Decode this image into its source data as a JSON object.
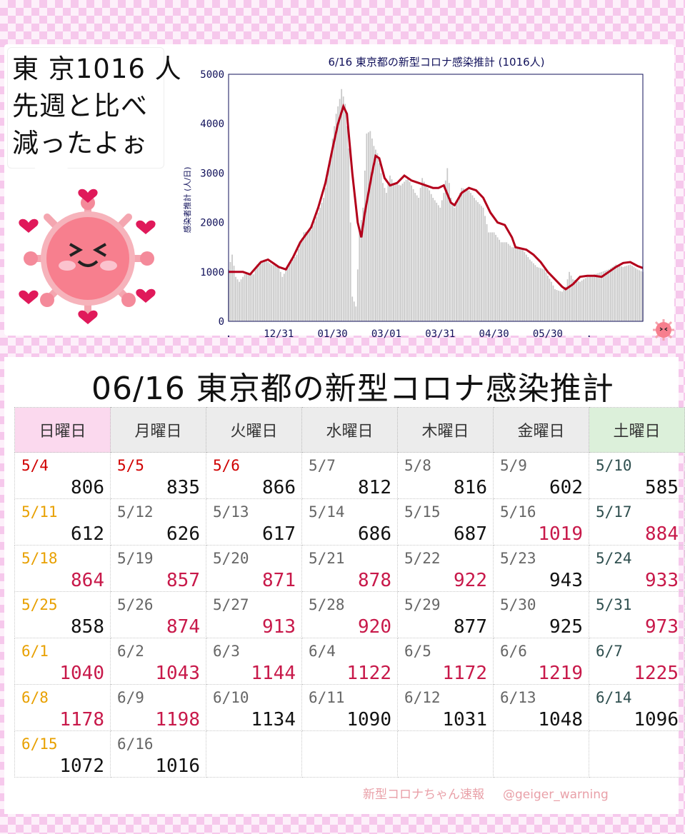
{
  "colors": {
    "holiday": "#d00000",
    "sunday": "#e8a000",
    "normal": "#666666",
    "saturday": "#2f4f4f",
    "value_normal": "#111111",
    "value_up": "#c8194a",
    "trend": "#b3001b",
    "bars": "#c8c8c8",
    "axis_text": "#10105a"
  },
  "bubble": {
    "lines": [
      "東 京1016 人",
      "先週と比べ",
      "減ったよぉ"
    ]
  },
  "mascot": {
    "name": "virus-mascot-icon",
    "small": "virus-mascot-small-icon"
  },
  "chart_data": {
    "type": "bar",
    "title": "6/16 東京都の新型コロナ感染推計 (1016人)",
    "ylabel": "感染者推計 (人/日)",
    "ylim": [
      0,
      5000
    ],
    "yticks": [
      "0",
      "1000",
      "2000",
      "3000",
      "4000",
      "5000"
    ],
    "xtick_labels": [
      ".",
      "12/31",
      "01/30",
      "03/01",
      "03/31",
      "04/30",
      "05/30",
      "."
    ],
    "x_days_from_start": [
      0,
      28,
      58,
      88,
      118,
      148,
      178,
      201
    ],
    "series": [
      {
        "values": [
          [
            0,
            1000
          ],
          [
            8,
            1000
          ],
          [
            12,
            950
          ],
          [
            18,
            1200
          ],
          [
            22,
            1250
          ],
          [
            28,
            1100
          ],
          [
            32,
            1050
          ],
          [
            36,
            1300
          ],
          [
            40,
            1600
          ],
          [
            46,
            1900
          ],
          [
            50,
            2300
          ],
          [
            54,
            2800
          ],
          [
            58,
            3500
          ],
          [
            61,
            4000
          ],
          [
            64,
            4350
          ],
          [
            66,
            4200
          ],
          [
            69,
            3000
          ],
          [
            72,
            2000
          ],
          [
            74,
            1700
          ],
          [
            76,
            2200
          ],
          [
            80,
            3000
          ],
          [
            82,
            3350
          ],
          [
            84,
            3300
          ],
          [
            87,
            2900
          ],
          [
            90,
            2750
          ],
          [
            94,
            2800
          ],
          [
            98,
            2950
          ],
          [
            102,
            2850
          ],
          [
            106,
            2800
          ],
          [
            110,
            2750
          ],
          [
            114,
            2700
          ],
          [
            117,
            2700
          ],
          [
            120,
            2750
          ],
          [
            124,
            2400
          ],
          [
            126,
            2350
          ],
          [
            130,
            2600
          ],
          [
            134,
            2700
          ],
          [
            138,
            2650
          ],
          [
            142,
            2500
          ],
          [
            146,
            2200
          ],
          [
            150,
            2000
          ],
          [
            154,
            1950
          ],
          [
            158,
            1700
          ],
          [
            160,
            1500
          ],
          [
            166,
            1450
          ],
          [
            170,
            1350
          ],
          [
            174,
            1200
          ],
          [
            178,
            1000
          ],
          [
            182,
            850
          ],
          [
            186,
            700
          ],
          [
            188,
            650
          ],
          [
            192,
            750
          ],
          [
            196,
            900
          ],
          [
            200,
            920
          ],
          [
            204,
            920
          ],
          [
            208,
            900
          ],
          [
            212,
            1000
          ],
          [
            216,
            1100
          ],
          [
            220,
            1180
          ],
          [
            224,
            1200
          ],
          [
            228,
            1120
          ],
          [
            231,
            1080
          ]
        ]
      },
      {
        "values": [
          [
            0,
            1050
          ],
          [
            2,
            1350
          ],
          [
            4,
            900
          ],
          [
            6,
            800
          ],
          [
            8,
            900
          ],
          [
            10,
            1000
          ],
          [
            14,
            950
          ],
          [
            16,
            1150
          ],
          [
            20,
            1250
          ],
          [
            24,
            1150
          ],
          [
            28,
            1100
          ],
          [
            30,
            900
          ],
          [
            34,
            1150
          ],
          [
            38,
            1350
          ],
          [
            42,
            1800
          ],
          [
            46,
            1850
          ],
          [
            50,
            2200
          ],
          [
            53,
            2500
          ],
          [
            56,
            3100
          ],
          [
            58,
            3700
          ],
          [
            60,
            4200
          ],
          [
            62,
            4500
          ],
          [
            63,
            4700
          ],
          [
            65,
            4400
          ],
          [
            67,
            3500
          ],
          [
            69,
            500
          ],
          [
            71,
            300
          ],
          [
            73,
            1800
          ],
          [
            75,
            2300
          ],
          [
            77,
            3800
          ],
          [
            79,
            3850
          ],
          [
            81,
            3550
          ],
          [
            83,
            3400
          ],
          [
            86,
            2800
          ],
          [
            88,
            2600
          ],
          [
            90,
            2950
          ],
          [
            92,
            2800
          ],
          [
            96,
            2750
          ],
          [
            100,
            2900
          ],
          [
            104,
            2600
          ],
          [
            106,
            2500
          ],
          [
            108,
            2900
          ],
          [
            110,
            2750
          ],
          [
            112,
            2650
          ],
          [
            114,
            2500
          ],
          [
            116,
            2400
          ],
          [
            118,
            2300
          ],
          [
            120,
            2600
          ],
          [
            122,
            3100
          ],
          [
            124,
            2500
          ],
          [
            126,
            2300
          ],
          [
            130,
            2700
          ],
          [
            134,
            2650
          ],
          [
            138,
            2450
          ],
          [
            142,
            2300
          ],
          [
            145,
            1800
          ],
          [
            148,
            1800
          ],
          [
            152,
            1600
          ],
          [
            155,
            1600
          ],
          [
            158,
            1500
          ],
          [
            160,
            1500
          ],
          [
            164,
            1450
          ],
          [
            168,
            1250
          ],
          [
            172,
            1100
          ],
          [
            176,
            1050
          ],
          [
            180,
            800
          ],
          [
            182,
            650
          ],
          [
            184,
            620
          ],
          [
            186,
            600
          ],
          [
            188,
            700
          ],
          [
            190,
            1000
          ],
          [
            192,
            850
          ],
          [
            196,
            800
          ],
          [
            200,
            900
          ],
          [
            204,
            950
          ],
          [
            208,
            1000
          ],
          [
            212,
            1050
          ],
          [
            216,
            1150
          ],
          [
            220,
            1100
          ],
          [
            224,
            1150
          ],
          [
            228,
            1050
          ],
          [
            231,
            1000
          ]
        ]
      }
    ]
  },
  "main_title": "06/16 東京都の新型コロナ感染推計",
  "weekdays": [
    "日曜日",
    "月曜日",
    "火曜日",
    "水曜日",
    "木曜日",
    "金曜日",
    "土曜日"
  ],
  "calendar": [
    [
      {
        "d": "5/4",
        "v": "806",
        "dc": "holiday",
        "vc": "value_normal"
      },
      {
        "d": "5/5",
        "v": "835",
        "dc": "holiday",
        "vc": "value_normal"
      },
      {
        "d": "5/6",
        "v": "866",
        "dc": "holiday",
        "vc": "value_normal"
      },
      {
        "d": "5/7",
        "v": "812",
        "dc": "normal",
        "vc": "value_normal"
      },
      {
        "d": "5/8",
        "v": "816",
        "dc": "normal",
        "vc": "value_normal"
      },
      {
        "d": "5/9",
        "v": "602",
        "dc": "normal",
        "vc": "value_normal"
      },
      {
        "d": "5/10",
        "v": "585",
        "dc": "saturday",
        "vc": "value_normal"
      }
    ],
    [
      {
        "d": "5/11",
        "v": "612",
        "dc": "sunday",
        "vc": "value_normal"
      },
      {
        "d": "5/12",
        "v": "626",
        "dc": "normal",
        "vc": "value_normal"
      },
      {
        "d": "5/13",
        "v": "617",
        "dc": "normal",
        "vc": "value_normal"
      },
      {
        "d": "5/14",
        "v": "686",
        "dc": "normal",
        "vc": "value_normal"
      },
      {
        "d": "5/15",
        "v": "687",
        "dc": "normal",
        "vc": "value_normal"
      },
      {
        "d": "5/16",
        "v": "1019",
        "dc": "normal",
        "vc": "value_up"
      },
      {
        "d": "5/17",
        "v": "884",
        "dc": "saturday",
        "vc": "value_up"
      }
    ],
    [
      {
        "d": "5/18",
        "v": "864",
        "dc": "sunday",
        "vc": "value_up"
      },
      {
        "d": "5/19",
        "v": "857",
        "dc": "normal",
        "vc": "value_up"
      },
      {
        "d": "5/20",
        "v": "871",
        "dc": "normal",
        "vc": "value_up"
      },
      {
        "d": "5/21",
        "v": "878",
        "dc": "normal",
        "vc": "value_up"
      },
      {
        "d": "5/22",
        "v": "922",
        "dc": "normal",
        "vc": "value_up"
      },
      {
        "d": "5/23",
        "v": "943",
        "dc": "normal",
        "vc": "value_normal"
      },
      {
        "d": "5/24",
        "v": "933",
        "dc": "saturday",
        "vc": "value_up"
      }
    ],
    [
      {
        "d": "5/25",
        "v": "858",
        "dc": "sunday",
        "vc": "value_normal"
      },
      {
        "d": "5/26",
        "v": "874",
        "dc": "normal",
        "vc": "value_up"
      },
      {
        "d": "5/27",
        "v": "913",
        "dc": "normal",
        "vc": "value_up"
      },
      {
        "d": "5/28",
        "v": "920",
        "dc": "normal",
        "vc": "value_up"
      },
      {
        "d": "5/29",
        "v": "877",
        "dc": "normal",
        "vc": "value_normal"
      },
      {
        "d": "5/30",
        "v": "925",
        "dc": "normal",
        "vc": "value_normal"
      },
      {
        "d": "5/31",
        "v": "973",
        "dc": "saturday",
        "vc": "value_up"
      }
    ],
    [
      {
        "d": "6/1",
        "v": "1040",
        "dc": "sunday",
        "vc": "value_up"
      },
      {
        "d": "6/2",
        "v": "1043",
        "dc": "normal",
        "vc": "value_up"
      },
      {
        "d": "6/3",
        "v": "1144",
        "dc": "normal",
        "vc": "value_up"
      },
      {
        "d": "6/4",
        "v": "1122",
        "dc": "normal",
        "vc": "value_up"
      },
      {
        "d": "6/5",
        "v": "1172",
        "dc": "normal",
        "vc": "value_up"
      },
      {
        "d": "6/6",
        "v": "1219",
        "dc": "normal",
        "vc": "value_up"
      },
      {
        "d": "6/7",
        "v": "1225",
        "dc": "saturday",
        "vc": "value_up"
      }
    ],
    [
      {
        "d": "6/8",
        "v": "1178",
        "dc": "sunday",
        "vc": "value_up"
      },
      {
        "d": "6/9",
        "v": "1198",
        "dc": "normal",
        "vc": "value_up"
      },
      {
        "d": "6/10",
        "v": "1134",
        "dc": "normal",
        "vc": "value_normal"
      },
      {
        "d": "6/11",
        "v": "1090",
        "dc": "normal",
        "vc": "value_normal"
      },
      {
        "d": "6/12",
        "v": "1031",
        "dc": "normal",
        "vc": "value_normal"
      },
      {
        "d": "6/13",
        "v": "1048",
        "dc": "normal",
        "vc": "value_normal"
      },
      {
        "d": "6/14",
        "v": "1096",
        "dc": "saturday",
        "vc": "value_normal"
      }
    ],
    [
      {
        "d": "6/15",
        "v": "1072",
        "dc": "sunday",
        "vc": "value_normal"
      },
      {
        "d": "6/16",
        "v": "1016",
        "dc": "normal",
        "vc": "value_normal"
      },
      null,
      null,
      null,
      null,
      null
    ]
  ],
  "footer": {
    "brand": "新型コロナちゃん速報",
    "handle": "@geiger_warning"
  }
}
